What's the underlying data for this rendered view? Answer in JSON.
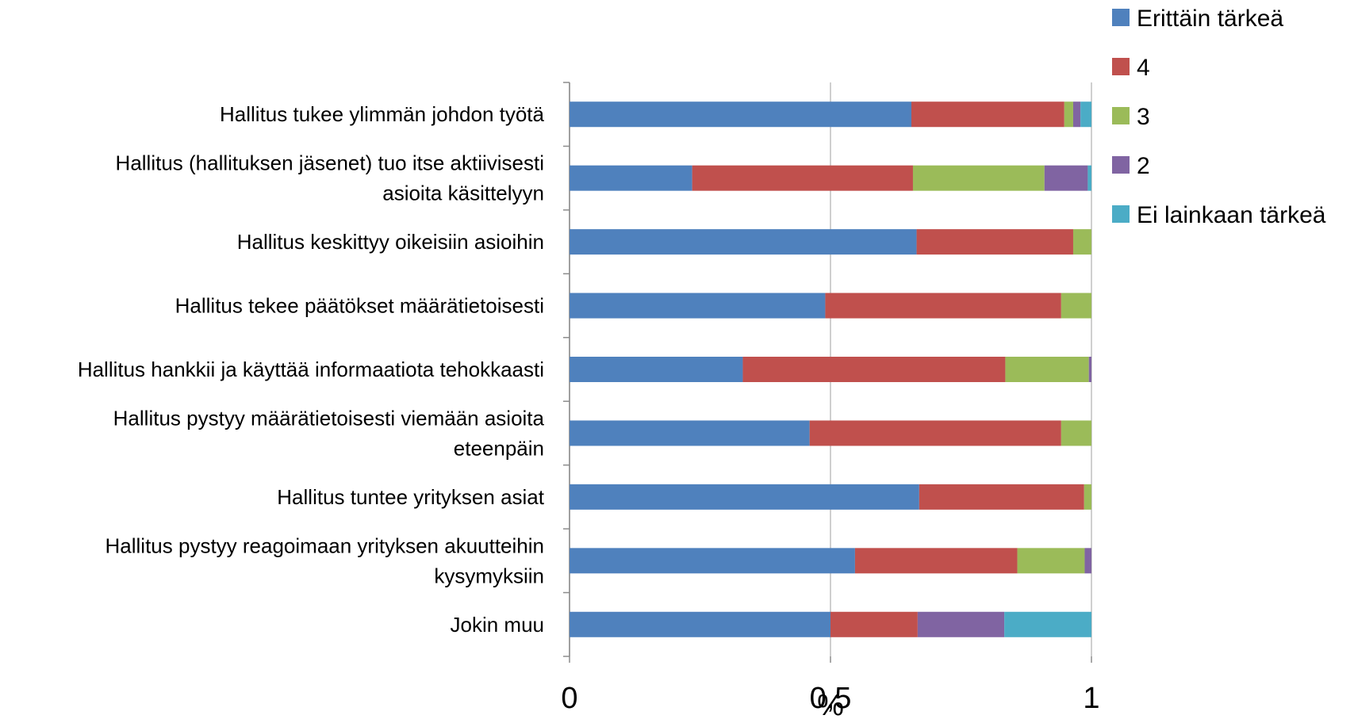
{
  "chart_data": {
    "type": "bar",
    "orientation": "horizontal",
    "stacked": true,
    "categories": [
      "Hallitus tukee ylimmän johdon työtä",
      "Hallitus (hallituksen jäsenet) tuo itse aktiivisesti asioita käsittelyyn",
      "Hallitus keskittyy oikeisiin asioihin",
      "Hallitus tekee päätökset määrätietoisesti",
      "Hallitus hankkii ja käyttää informaatiota tehokkaasti",
      "Hallitus pystyy määrätietoisesti viemään asioita eteenpäin",
      "Hallitus tuntee yrityksen asiat",
      "Hallitus pystyy reagoimaan yrityksen akuutteihin kysymyksiin",
      "Jokin muu"
    ],
    "category_lines": [
      [
        "Hallitus tukee ylimmän johdon työtä"
      ],
      [
        "Hallitus (hallituksen jäsenet) tuo itse aktiivisesti",
        "asioita käsittelyyn"
      ],
      [
        "Hallitus keskittyy oikeisiin asioihin"
      ],
      [
        "Hallitus tekee päätökset määrätietoisesti"
      ],
      [
        "Hallitus hankkii ja käyttää informaatiota tehokkaasti"
      ],
      [
        "Hallitus pystyy määrätietoisesti viemään asioita",
        "eteenpäin"
      ],
      [
        "Hallitus tuntee yrityksen asiat"
      ],
      [
        "Hallitus pystyy reagoimaan yrityksen akuutteihin",
        "kysymyksiin"
      ],
      [
        "Jokin muu"
      ]
    ],
    "series": [
      {
        "name": "Erittäin tärkeä",
        "color": "#4F81BD",
        "values": [
          0.655,
          0.235,
          0.665,
          0.49,
          0.332,
          0.46,
          0.67,
          0.547,
          0.5
        ]
      },
      {
        "name": "4",
        "color": "#C0504D",
        "values": [
          0.293,
          0.423,
          0.3,
          0.452,
          0.503,
          0.482,
          0.316,
          0.311,
          0.167
        ]
      },
      {
        "name": "3",
        "color": "#9BBB59",
        "values": [
          0.017,
          0.252,
          0.035,
          0.058,
          0.16,
          0.058,
          0.014,
          0.129,
          0.0
        ]
      },
      {
        "name": "2",
        "color": "#8064A2",
        "values": [
          0.014,
          0.083,
          0.0,
          0.0,
          0.005,
          0.0,
          0.0,
          0.013,
          0.166
        ]
      },
      {
        "name": "Ei lainkaan tärkeä",
        "color": "#4BACC6",
        "values": [
          0.021,
          0.007,
          0.0,
          0.0,
          0.0,
          0.0,
          0.0,
          0.0,
          0.167
        ]
      }
    ],
    "xlim": [
      0,
      1
    ],
    "xticks": [
      0,
      0.5,
      1
    ],
    "xtick_labels": [
      "0",
      "0,5",
      "1"
    ],
    "xlabel": "%",
    "grid": true,
    "legend_position": "top-right"
  }
}
